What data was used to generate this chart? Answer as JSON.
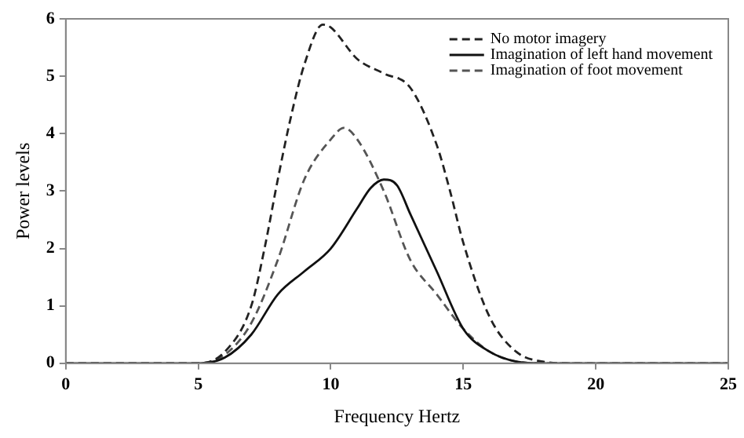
{
  "chart_data": {
    "type": "line",
    "xlabel": "Frequency Hertz",
    "ylabel": "Power levels",
    "xlim": [
      0,
      25
    ],
    "xticks": [
      0,
      5,
      10,
      15,
      20,
      25
    ],
    "ylim": [
      0,
      6
    ],
    "yticks": [
      0,
      1,
      2,
      3,
      4,
      5,
      6
    ],
    "grid": false,
    "legend": "top right",
    "marker": "none",
    "series": [
      {
        "name": "No motor imagery",
        "color": "#222222",
        "line_style": "dashed",
        "x": [
          0,
          5,
          6,
          7,
          7.5,
          8,
          8.5,
          9,
          9.7,
          10,
          11,
          12,
          13,
          14,
          14.5,
          15,
          16,
          17,
          18,
          19,
          25
        ],
        "values": [
          0,
          0,
          0.2,
          1.0,
          2.0,
          3.2,
          4.3,
          5.2,
          5.9,
          5.85,
          5.3,
          5.05,
          4.8,
          3.8,
          3.0,
          2.1,
          0.8,
          0.2,
          0.03,
          0,
          0
        ]
      },
      {
        "name": "Imagination of left hand movement",
        "color": "#111111",
        "line_style": "solid",
        "x": [
          0,
          5,
          6,
          7,
          8,
          9,
          10,
          11,
          11.5,
          12,
          12.5,
          13,
          14,
          15,
          16,
          17,
          18,
          25
        ],
        "values": [
          0,
          0,
          0.1,
          0.5,
          1.2,
          1.6,
          2.0,
          2.7,
          3.05,
          3.2,
          3.1,
          2.6,
          1.6,
          0.6,
          0.2,
          0.03,
          0,
          0
        ]
      },
      {
        "name": "Imagination of foot movement",
        "color": "#555555",
        "line_style": "dashed",
        "x": [
          0,
          5,
          6,
          7,
          8,
          9,
          10,
          10.5,
          11,
          12,
          13,
          14,
          15,
          16,
          17,
          18,
          25
        ],
        "values": [
          0,
          0,
          0.15,
          0.7,
          1.8,
          3.2,
          3.9,
          4.1,
          3.9,
          3.0,
          1.8,
          1.2,
          0.6,
          0.2,
          0.03,
          0,
          0
        ]
      }
    ]
  }
}
